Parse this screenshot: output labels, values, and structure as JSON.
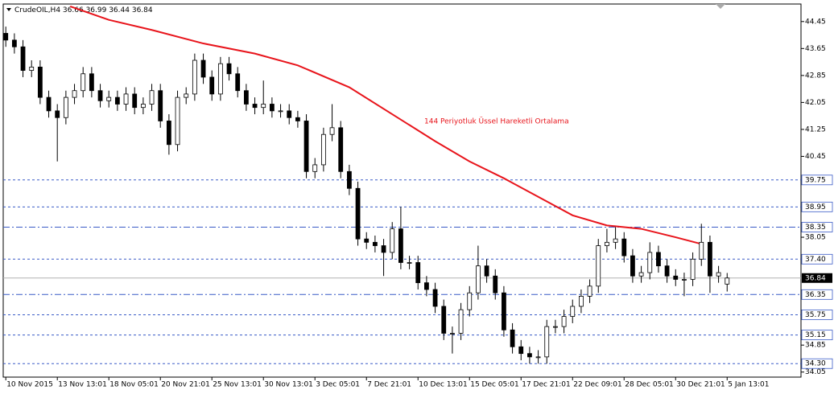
{
  "chart_data": {
    "type": "candlestick",
    "symbol": "CrudeOIL,H4",
    "annotation": "144 Periyotluk Üssel Hareketli Ortalama",
    "ylim": [
      33.9,
      44.97
    ],
    "yticks": [
      44.45,
      43.65,
      42.85,
      42.05,
      41.25,
      40.45,
      38.05,
      34.85,
      34.05
    ],
    "xlim": [
      -0.3,
      92.6
    ],
    "xticks": [
      {
        "value": 0,
        "label": "10 Nov 2015"
      },
      {
        "value": 6,
        "label": "13 Nov 13:01"
      },
      {
        "value": 12,
        "label": "18 Nov 05:01"
      },
      {
        "value": 18,
        "label": "20 Nov 21:01"
      },
      {
        "value": 24,
        "label": "25 Nov 13:01"
      },
      {
        "value": 30,
        "label": "30 Nov 13:01"
      },
      {
        "value": 36,
        "label": "3 Dec 05:01"
      },
      {
        "value": 42,
        "label": "7 Dec 21:01"
      },
      {
        "value": 48,
        "label": "10 Dec 13:01"
      },
      {
        "value": 54,
        "label": "15 Dec 05:01"
      },
      {
        "value": 60,
        "label": "17 Dec 21:01"
      },
      {
        "value": 66,
        "label": "22 Dec 09:01"
      },
      {
        "value": 72,
        "label": "28 Dec 05:01"
      },
      {
        "value": 78,
        "label": "30 Dec 21:01"
      },
      {
        "value": 84,
        "label": "5 Jan 13:01"
      }
    ],
    "candles": {
      "open": [
        44.1,
        43.9,
        43.7,
        43.0,
        43.1,
        42.2,
        41.8,
        41.6,
        42.2,
        42.4,
        42.9,
        42.4,
        42.1,
        42.2,
        42.0,
        42.3,
        41.9,
        42.0,
        42.4,
        41.5,
        40.8,
        42.2,
        42.3,
        43.3,
        42.8,
        42.3,
        43.2,
        42.9,
        42.4,
        42.0,
        41.9,
        42.0,
        41.8,
        41.8,
        41.6,
        41.5,
        40.0,
        40.2,
        41.1,
        41.3,
        40.0,
        39.5,
        38.0,
        37.9,
        37.8,
        37.6,
        38.3,
        37.3,
        37.3,
        36.7,
        36.5,
        36.0,
        35.2,
        35.2,
        35.9,
        36.4,
        37.2,
        36.9,
        36.4,
        35.3,
        34.8,
        34.6,
        34.5,
        34.5,
        35.4,
        35.4,
        35.7,
        36.0,
        36.3,
        36.6,
        37.8,
        37.9,
        38.0,
        37.5,
        36.9,
        37.0,
        37.6,
        37.2,
        36.9,
        36.8,
        36.8,
        37.4,
        37.9,
        36.9,
        36.66
      ],
      "high": [
        44.3,
        44.1,
        43.9,
        43.3,
        43.3,
        42.4,
        42.0,
        42.4,
        42.6,
        43.1,
        43.1,
        42.6,
        42.4,
        42.4,
        42.5,
        42.5,
        42.2,
        42.6,
        42.6,
        41.7,
        42.4,
        42.5,
        43.5,
        43.5,
        43.0,
        43.4,
        43.4,
        43.1,
        42.6,
        42.2,
        42.7,
        42.2,
        42.0,
        42.0,
        41.8,
        41.7,
        40.4,
        41.3,
        42.0,
        41.5,
        40.2,
        39.7,
        38.2,
        38.1,
        38.0,
        38.5,
        38.95,
        37.5,
        37.5,
        36.9,
        36.7,
        36.2,
        35.4,
        36.1,
        36.6,
        37.8,
        37.4,
        37.1,
        36.6,
        35.5,
        35.0,
        34.8,
        34.7,
        35.6,
        35.6,
        35.9,
        36.2,
        36.5,
        36.8,
        38.0,
        38.3,
        38.35,
        38.2,
        37.7,
        37.2,
        37.9,
        37.8,
        37.4,
        37.1,
        37.0,
        37.6,
        38.45,
        38.1,
        37.2,
        36.99
      ],
      "low": [
        43.7,
        43.5,
        42.8,
        42.8,
        42.0,
        41.6,
        40.3,
        41.4,
        42.0,
        42.2,
        42.2,
        41.9,
        41.9,
        41.8,
        41.8,
        41.7,
        41.7,
        41.8,
        41.3,
        40.5,
        40.6,
        42.0,
        42.1,
        42.6,
        42.1,
        42.1,
        42.7,
        42.2,
        41.8,
        41.7,
        41.7,
        41.6,
        41.6,
        41.4,
        41.3,
        39.8,
        39.8,
        40.0,
        40.9,
        39.8,
        39.3,
        37.8,
        37.7,
        37.6,
        36.9,
        37.4,
        37.1,
        37.1,
        36.5,
        36.3,
        35.8,
        35.0,
        34.6,
        35.0,
        35.7,
        36.2,
        36.7,
        36.2,
        35.1,
        34.6,
        34.4,
        34.3,
        34.3,
        34.3,
        35.2,
        35.2,
        35.5,
        35.8,
        36.1,
        36.4,
        37.6,
        37.7,
        37.3,
        36.7,
        36.7,
        36.8,
        37.0,
        36.7,
        36.6,
        36.3,
        36.6,
        37.2,
        36.4,
        36.7,
        36.44
      ],
      "close": [
        43.9,
        43.7,
        43.0,
        43.1,
        42.2,
        41.8,
        41.6,
        42.2,
        42.4,
        42.9,
        42.4,
        42.1,
        42.2,
        42.0,
        42.3,
        41.9,
        42.0,
        42.4,
        41.5,
        40.8,
        42.2,
        42.3,
        43.3,
        42.8,
        42.3,
        43.2,
        42.9,
        42.4,
        42.0,
        41.9,
        42.0,
        41.8,
        41.8,
        41.6,
        41.5,
        40.0,
        40.2,
        41.1,
        41.3,
        40.0,
        39.5,
        38.0,
        37.9,
        37.8,
        37.6,
        38.3,
        37.3,
        37.3,
        36.7,
        36.5,
        36.0,
        35.2,
        35.2,
        35.9,
        36.4,
        37.2,
        36.9,
        36.4,
        35.3,
        34.8,
        34.6,
        34.5,
        34.5,
        35.4,
        35.4,
        35.7,
        36.0,
        36.3,
        36.6,
        37.8,
        37.9,
        38.0,
        37.5,
        36.9,
        37.0,
        37.6,
        37.2,
        36.9,
        36.8,
        36.8,
        37.4,
        37.9,
        36.9,
        37.0,
        36.84
      ]
    },
    "moving_average": {
      "color": "#e8141b",
      "x": [
        7.5,
        12,
        17,
        23,
        29,
        34,
        40,
        45,
        50,
        54,
        58,
        62,
        66,
        70,
        74,
        78,
        81
      ],
      "values": [
        44.9,
        44.5,
        44.2,
        43.8,
        43.5,
        43.15,
        42.5,
        41.7,
        40.9,
        40.3,
        39.8,
        39.25,
        38.7,
        38.4,
        38.3,
        38.05,
        37.85
      ]
    },
    "levels": [
      {
        "value": 39.75,
        "style": "dash"
      },
      {
        "value": 38.95,
        "style": "dash"
      },
      {
        "value": 38.35,
        "style": "dashdot"
      },
      {
        "value": 37.4,
        "style": "dash"
      },
      {
        "value": 36.35,
        "style": "dashdot"
      },
      {
        "value": 35.75,
        "style": "dash"
      },
      {
        "value": 35.15,
        "style": "dash"
      },
      {
        "value": 34.3,
        "style": "dash"
      }
    ],
    "level_labels": [
      "39.75",
      "38.95",
      "38.35",
      "37.40",
      "36.35",
      "35.75",
      "35.15",
      "34.30"
    ],
    "current_price": 36.84,
    "level_color": "#3a5bc7"
  }
}
